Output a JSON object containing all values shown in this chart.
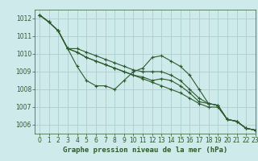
{
  "title": "Graphe pression niveau de la mer (hPa)",
  "background_color": "#ceeaea",
  "grid_color": "#aacfcf",
  "line_color": "#2d5a2d",
  "xlim": [
    -0.5,
    23
  ],
  "ylim": [
    1005.5,
    1012.5
  ],
  "yticks": [
    1006,
    1007,
    1008,
    1009,
    1010,
    1011,
    1012
  ],
  "xticks": [
    0,
    1,
    2,
    3,
    4,
    5,
    6,
    7,
    8,
    9,
    10,
    11,
    12,
    13,
    14,
    15,
    16,
    17,
    18,
    19,
    20,
    21,
    22,
    23
  ],
  "series": [
    [
      1012.2,
      1011.8,
      1011.3,
      1010.3,
      1009.3,
      1008.5,
      1008.2,
      1008.2,
      1008.0,
      1008.5,
      1009.0,
      1009.2,
      1009.8,
      1009.9,
      1009.6,
      1009.3,
      1008.8,
      1008.0,
      1007.2,
      1007.1,
      1006.3,
      1006.2,
      1005.8,
      1005.7
    ],
    [
      1012.2,
      1011.8,
      1011.3,
      1010.3,
      1010.3,
      1010.1,
      1009.9,
      1009.7,
      1009.5,
      1009.3,
      1009.1,
      1009.0,
      1009.0,
      1009.0,
      1008.8,
      1008.5,
      1008.0,
      1007.5,
      1007.2,
      1007.1,
      1006.3,
      1006.2,
      1005.8,
      1005.7
    ],
    [
      1012.2,
      1011.8,
      1011.3,
      1010.3,
      1010.1,
      1009.8,
      1009.6,
      1009.4,
      1009.2,
      1009.0,
      1008.8,
      1008.7,
      1008.5,
      1008.6,
      1008.5,
      1008.2,
      1007.8,
      1007.3,
      1007.2,
      1007.1,
      1006.3,
      1006.2,
      1005.8,
      1005.7
    ],
    [
      1012.2,
      1011.8,
      1011.3,
      1010.3,
      1010.1,
      1009.8,
      1009.6,
      1009.4,
      1009.2,
      1009.0,
      1008.8,
      1008.6,
      1008.4,
      1008.2,
      1008.0,
      1007.8,
      1007.5,
      1007.2,
      1007.0,
      1007.0,
      1006.3,
      1006.2,
      1005.8,
      1005.7
    ]
  ],
  "tick_fontsize": 5.5,
  "label_fontsize": 6.5,
  "linewidth": 0.8,
  "markersize": 2.5
}
